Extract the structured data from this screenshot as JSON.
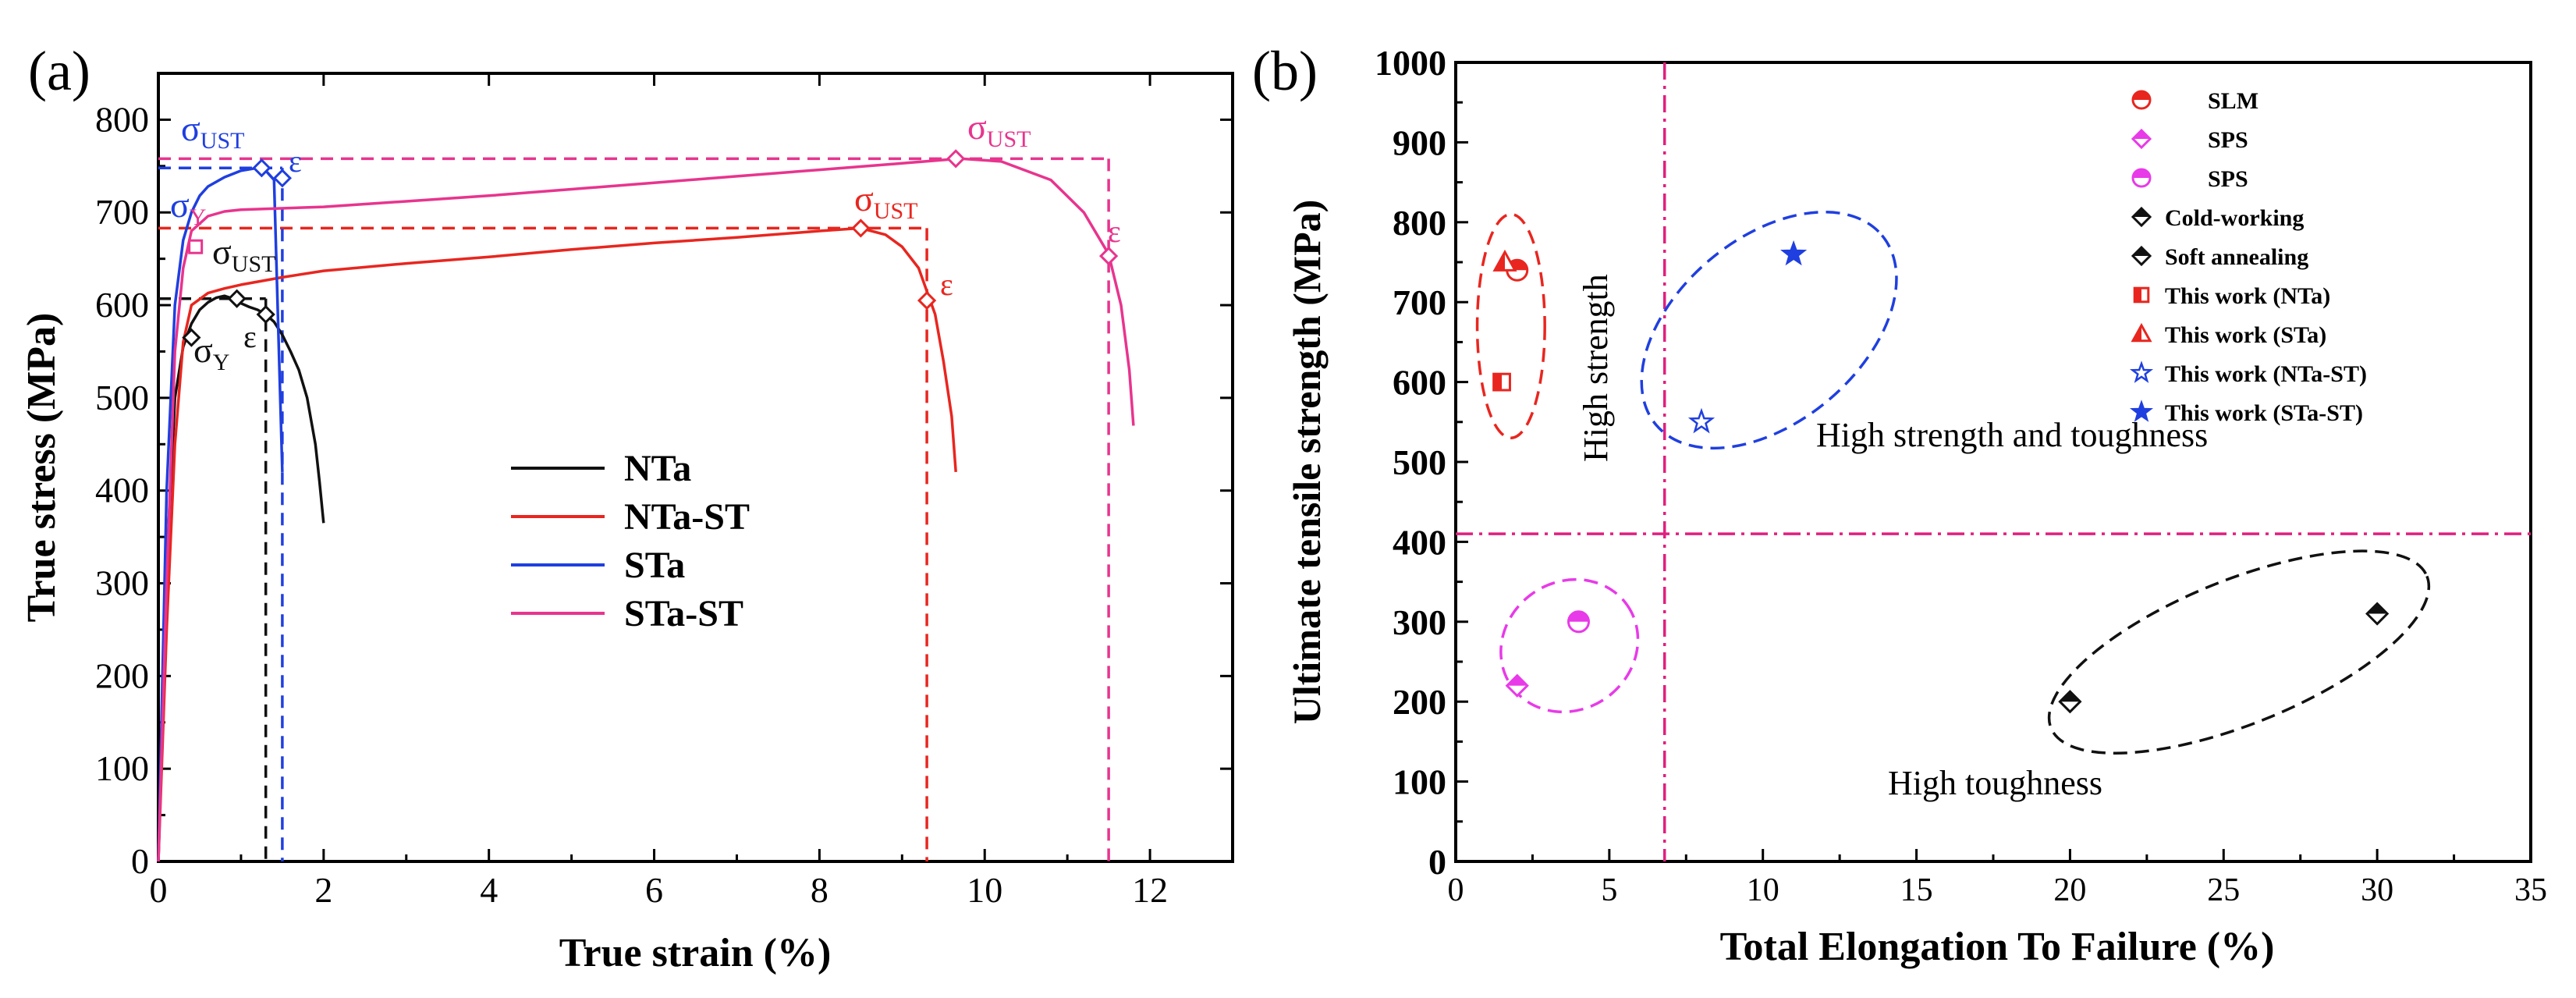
{
  "chart_data": [
    {
      "panel_label": "(a)",
      "type": "line",
      "xlabel": "True strain (%)",
      "ylabel": "True stress (MPa)",
      "xlim": [
        0,
        13
      ],
      "ylim": [
        0,
        850
      ],
      "xticks": [
        "0",
        "2",
        "4",
        "6",
        "8",
        "10",
        "12"
      ],
      "xtick_values": [
        0,
        2,
        4,
        6,
        8,
        10,
        12
      ],
      "yticks": [
        "0",
        "100",
        "200",
        "300",
        "400",
        "500",
        "600",
        "700",
        "800"
      ],
      "ytick_values": [
        0,
        100,
        200,
        300,
        400,
        500,
        600,
        700,
        800
      ],
      "legend": [
        "NTa",
        "NTa-ST",
        "STa",
        "STa-ST"
      ],
      "legend_position": "center-right",
      "series": [
        {
          "name": "NTa",
          "color": "#111111",
          "x": [
            0,
            0.1,
            0.2,
            0.3,
            0.4,
            0.5,
            0.6,
            0.7,
            0.8,
            0.9,
            1.0,
            1.1,
            1.2,
            1.3,
            1.4,
            1.5,
            1.6,
            1.7,
            1.8,
            1.9,
            1.95,
            2.0
          ],
          "y": [
            0,
            320,
            500,
            555,
            580,
            595,
            603,
            608,
            610,
            607,
            602,
            598,
            595,
            590,
            582,
            568,
            550,
            530,
            500,
            450,
            410,
            365
          ]
        },
        {
          "name": "NTa-ST",
          "color": "#e8261f",
          "x": [
            0,
            0.1,
            0.2,
            0.3,
            0.4,
            0.6,
            0.8,
            1.0,
            1.5,
            2,
            3,
            4,
            5,
            6,
            7,
            8,
            8.5,
            8.8,
            9.0,
            9.2,
            9.4,
            9.5,
            9.6,
            9.65
          ],
          "y": [
            0,
            250,
            450,
            560,
            600,
            613,
            618,
            622,
            630,
            637,
            645,
            652,
            660,
            667,
            673,
            680,
            683,
            676,
            663,
            640,
            590,
            540,
            480,
            420
          ]
        },
        {
          "name": "STa",
          "color": "#1f3fe0",
          "x": [
            0,
            0.1,
            0.2,
            0.3,
            0.4,
            0.5,
            0.6,
            0.8,
            1.0,
            1.2,
            1.3,
            1.4,
            1.5
          ],
          "y": [
            0,
            400,
            600,
            670,
            700,
            718,
            728,
            738,
            745,
            748,
            745,
            735,
            420
          ]
        },
        {
          "name": "STa-ST",
          "color": "#e8348e",
          "x": [
            0,
            0.1,
            0.2,
            0.3,
            0.4,
            0.6,
            0.8,
            1.0,
            2,
            3,
            4,
            5,
            6,
            7,
            8,
            9,
            9.7,
            10.2,
            10.8,
            11.2,
            11.5,
            11.65,
            11.75,
            11.8
          ],
          "y": [
            0,
            300,
            550,
            640,
            680,
            696,
            701,
            703,
            706,
            712,
            718,
            725,
            732,
            739,
            746,
            753,
            758,
            755,
            735,
            700,
            655,
            600,
            530,
            470
          ]
        }
      ],
      "markers": [
        {
          "series": "NTa",
          "label": "σY",
          "x": 0.4,
          "y": 565
        },
        {
          "series": "NTa",
          "label": "σUST",
          "x": 0.95,
          "y": 607
        },
        {
          "series": "NTa",
          "label": "ε",
          "x": 1.3,
          "y": 590
        },
        {
          "series": "NTa-ST",
          "label": "σUST",
          "x": 8.5,
          "y": 683
        },
        {
          "series": "NTa-ST",
          "label": "ε",
          "x": 9.3,
          "y": 605
        },
        {
          "series": "STa",
          "label": "σUST",
          "x": 1.25,
          "y": 748
        },
        {
          "series": "STa",
          "label": "ε",
          "x": 1.5,
          "y": 737
        },
        {
          "series": "STa-ST",
          "label": "σY",
          "x": 0.45,
          "y": 663
        },
        {
          "series": "STa-ST",
          "label": "σUST",
          "x": 9.65,
          "y": 758
        },
        {
          "series": "STa-ST",
          "label": "ε",
          "x": 11.5,
          "y": 653
        }
      ],
      "dashed_guides": [
        {
          "color": "#e8348e",
          "y": 758,
          "x_vertical": 11.5
        },
        {
          "color": "#e8261f",
          "y": 683,
          "x_vertical": 9.3
        },
        {
          "color": "#1f3fe0",
          "y": 748,
          "x_vertical": 1.5
        },
        {
          "color": "#111111",
          "y": 607,
          "x_vertical": 1.3
        }
      ],
      "annotation_labels": {
        "sigma": "σ",
        "sub_y": "Y",
        "sub_ust": "UST",
        "epsilon": "ε"
      }
    },
    {
      "panel_label": "(b)",
      "type": "scatter",
      "xlabel": "Total Elongation To Failure (%)",
      "ylabel": "Ultimate tensile strength (MPa)",
      "xlim": [
        0,
        35
      ],
      "ylim": [
        0,
        1000
      ],
      "xticks": [
        "0",
        "5",
        "10",
        "15",
        "20",
        "25",
        "30",
        "35"
      ],
      "xtick_values": [
        0,
        5,
        10,
        15,
        20,
        25,
        30,
        35
      ],
      "yticks": [
        "0",
        "100",
        "200",
        "300",
        "400",
        "500",
        "600",
        "700",
        "800",
        "900",
        "1000"
      ],
      "ytick_values": [
        0,
        100,
        200,
        300,
        400,
        500,
        600,
        700,
        800,
        900,
        1000
      ],
      "reference_lines": {
        "x": 6.8,
        "y": 410,
        "color": "#e0207f"
      },
      "points": [
        {
          "label": "SLM",
          "x": 2.0,
          "y": 740,
          "marker": "half-circle",
          "color": "#e8261f"
        },
        {
          "label": "SPS",
          "x": 2.0,
          "y": 220,
          "marker": "half-diamond",
          "color": "#e83ae8"
        },
        {
          "label": "SPS",
          "x": 4.0,
          "y": 300,
          "marker": "half-circle",
          "color": "#e83ae8"
        },
        {
          "label": "Cold-working",
          "x": 30.0,
          "y": 310,
          "marker": "half-diamond",
          "color": "#111111"
        },
        {
          "label": "Soft annealing",
          "x": 20.0,
          "y": 200,
          "marker": "half-diamond",
          "color": "#111111"
        },
        {
          "label": "This work (NTa)",
          "x": 1.5,
          "y": 600,
          "marker": "half-square",
          "color": "#e8261f"
        },
        {
          "label": "This work (STa)",
          "x": 1.6,
          "y": 750,
          "marker": "half-triangle",
          "color": "#e8261f"
        },
        {
          "label": "This work (NTa-ST)",
          "x": 8.0,
          "y": 550,
          "marker": "star-open",
          "color": "#1f3fe0"
        },
        {
          "label": "This work (STa-ST)",
          "x": 11.0,
          "y": 760,
          "marker": "star-filled",
          "color": "#1f3fe0"
        }
      ],
      "legend": [
        "SLM",
        "SPS",
        "SPS",
        "Cold-working",
        "Soft annealing",
        "This work (NTa)",
        "This work (STa)",
        "This work (NTa-ST)",
        "This work (STa-ST)"
      ],
      "legend_position": "top-right",
      "regions": [
        {
          "label": "High strength",
          "color": "#e8261f",
          "cx": 1.8,
          "cy": 670,
          "rx": 1.1,
          "ry": 140,
          "angle": 0
        },
        {
          "label": "High strength and toughness",
          "color": "#1f3fe0",
          "cx": 10.2,
          "cy": 665,
          "rx": 4.8,
          "ry": 115,
          "angle": -40
        },
        {
          "label": "",
          "color": "#e83ae8",
          "cx": 3.7,
          "cy": 270,
          "rx": 2.3,
          "ry": 80,
          "angle": -35
        },
        {
          "label": "High toughness",
          "color": "#111111",
          "cx": 25.5,
          "cy": 262,
          "rx": 6.6,
          "ry": 90,
          "angle": -22
        }
      ]
    }
  ]
}
